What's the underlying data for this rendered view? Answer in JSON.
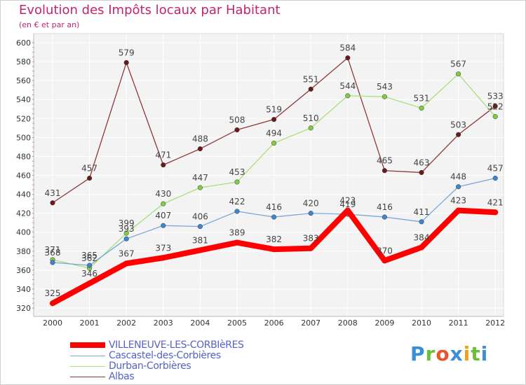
{
  "title": "Evolution des Impôts locaux par Habitant",
  "subtitle": "(en € et par an)",
  "logo": {
    "letters": [
      "P",
      "r",
      "o",
      "x",
      "i",
      "t",
      "i"
    ],
    "colors": [
      "#3a8fd6",
      "#6cbf3a",
      "#e8542c",
      "#3a8fd6",
      "#f2a01c",
      "#6cbf3a",
      "#3a8fd6"
    ]
  },
  "chart_data": {
    "type": "line",
    "title": "Evolution des Impôts locaux par Habitant",
    "subtitle": "(en € et par an)",
    "xlabel": "",
    "ylabel": "",
    "x": [
      "2000",
      "2001",
      "2002",
      "2003",
      "2004",
      "2005",
      "2006",
      "2007",
      "2008",
      "2009",
      "2010",
      "2011",
      "2012"
    ],
    "ylim": [
      320,
      600
    ],
    "yticks": [
      320,
      340,
      360,
      380,
      400,
      420,
      440,
      460,
      480,
      500,
      520,
      540,
      560,
      580,
      600
    ],
    "grid": true,
    "legend_position": "bottom-left",
    "series": [
      {
        "name": "VILLENEUVE-LES-CORBIèRES",
        "color": "#ff0000",
        "marker": "#ff0000",
        "emphasis": true,
        "values": [
          325,
          346,
          367,
          373,
          381,
          389,
          382,
          383,
          423,
          370,
          384,
          423,
          421
        ],
        "labels": [
          "325",
          "346",
          "367",
          "373",
          "381",
          "389",
          "382",
          "383",
          "423",
          "370",
          "384",
          "423",
          "421"
        ]
      },
      {
        "name": "Cascastel-des-Corbières",
        "color": "#7aa8d8",
        "marker": "#3f86d0",
        "emphasis": false,
        "values": [
          368,
          365,
          393,
          407,
          406,
          422,
          416,
          420,
          419,
          416,
          411,
          448,
          457
        ],
        "labels": [
          "368",
          "365",
          "393",
          "407",
          "406",
          "422",
          "416",
          "420",
          "419",
          "416",
          "411",
          "448",
          "457"
        ]
      },
      {
        "name": "Durban-Corbières",
        "color": "#a6e07a",
        "marker": "#7fcc47",
        "emphasis": false,
        "values": [
          371,
          362,
          399,
          430,
          447,
          453,
          494,
          510,
          544,
          543,
          531,
          567,
          522
        ],
        "labels": [
          "371",
          "362",
          "399",
          "430",
          "447",
          "453",
          "494",
          "510",
          "544",
          "543",
          "531",
          "567",
          "522"
        ]
      },
      {
        "name": "Albas",
        "color": "#8b3a3a",
        "marker": "#6b1a1a",
        "emphasis": false,
        "values": [
          431,
          457,
          579,
          471,
          488,
          508,
          519,
          551,
          584,
          465,
          463,
          503,
          533
        ],
        "labels": [
          "431",
          "457",
          "579",
          "471",
          "488",
          "508",
          "519",
          "551",
          "584",
          "465",
          "463",
          "503",
          "533"
        ]
      }
    ]
  }
}
